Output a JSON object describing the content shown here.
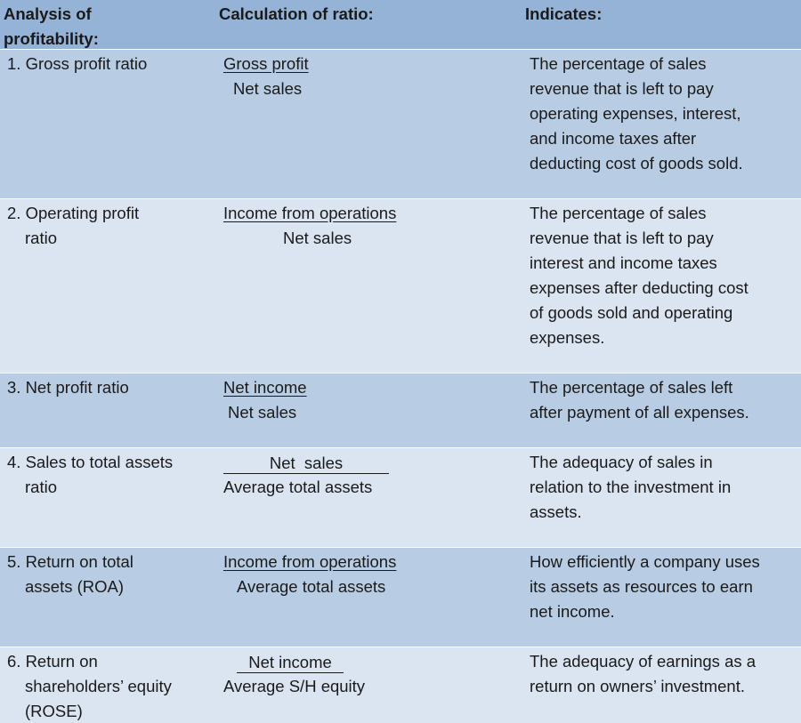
{
  "header": {
    "analysis": [
      "Analysis of",
      "profitability:"
    ],
    "calculation": "Calculation of ratio:",
    "indicates": "Indicates:"
  },
  "rows": [
    {
      "analysis": [
        "1. Gross profit ratio"
      ],
      "numerator": "Gross profit",
      "denominator": "Net sales",
      "indicates": [
        "The percentage of sales",
        "revenue that is left to pay",
        "operating expenses, interest,",
        "and income taxes after",
        "deducting cost of goods sold."
      ]
    },
    {
      "analysis": [
        "2. Operating profit",
        "ratio"
      ],
      "numerator": "Income from operations",
      "denominator": "Net sales",
      "indicates": [
        "The percentage of sales",
        "revenue that is left to pay",
        "interest and income taxes",
        "expenses after deducting cost",
        "of goods sold and operating",
        "expenses."
      ]
    },
    {
      "analysis": [
        "3. Net profit ratio"
      ],
      "numerator": "Net income",
      "denominator": "Net sales",
      "indicates": [
        "The percentage of sales left",
        "after payment of all expenses."
      ]
    },
    {
      "analysis": [
        "4. Sales to total assets",
        "ratio"
      ],
      "numerator": "Net  sales",
      "denominator": "Average total assets",
      "indicates": [
        "The adequacy of sales in",
        "relation to the investment in",
        "assets."
      ]
    },
    {
      "analysis": [
        "5. Return on total",
        "assets (ROA)"
      ],
      "numerator": "Income from operations",
      "denominator": "Average total assets",
      "indicates": [
        "How efficiently a company uses",
        "its assets as resources to earn",
        "net income."
      ]
    },
    {
      "analysis": [
        "6. Return on",
        "shareholders’ equity",
        "(ROSE)"
      ],
      "numerator": "Net income",
      "denominator": "Average S/H equity",
      "indicates": [
        "The adequacy of earnings as a",
        "return on owners’ investment."
      ]
    }
  ]
}
